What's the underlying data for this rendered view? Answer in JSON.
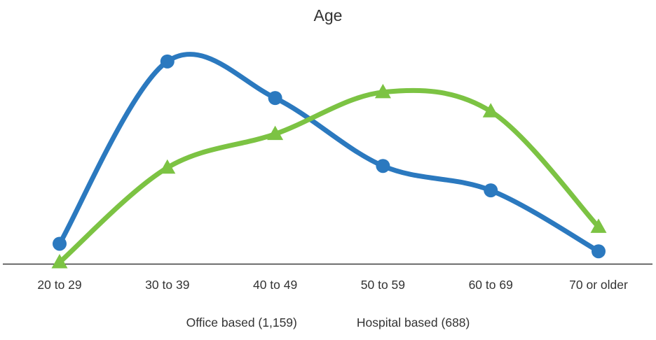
{
  "chart_data": {
    "type": "line",
    "title": "Age",
    "categories": [
      "20 to 29",
      "30 to 39",
      "40 to 49",
      "50 to 59",
      "60 to 69",
      "70 or older"
    ],
    "series": [
      {
        "name": "Office based (1,159)",
        "marker": "circle",
        "color": "#2B79BF",
        "values": [
          3.5,
          34.9,
          28.6,
          16.9,
          12.7,
          2.2
        ]
      },
      {
        "name": "Hospital based (688)",
        "marker": "triangle",
        "color": "#7CC343",
        "values": [
          0.3,
          16.6,
          22.4,
          29.6,
          26.3,
          6.4
        ]
      }
    ],
    "xlabel": "",
    "ylabel": "",
    "ylim": [
      0,
      40
    ],
    "y_axis_visible": false,
    "grid": false,
    "curve": "smooth",
    "legend_position": "bottom",
    "legend_has_markers": false,
    "axis_line_color": "#3B3B3B",
    "text_color": "#333333"
  }
}
